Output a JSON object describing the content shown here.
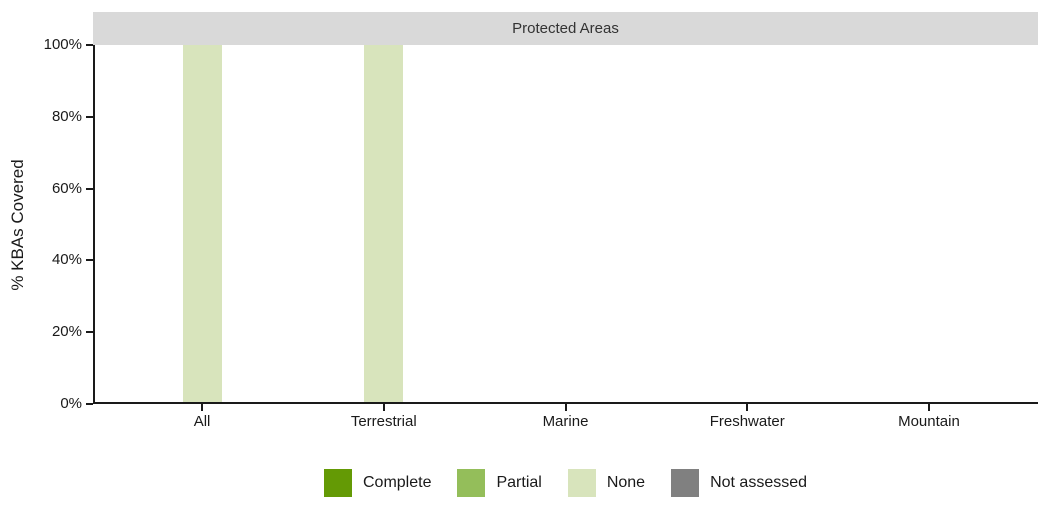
{
  "colors": {
    "strip_background": "#d9d9d9",
    "axis": "#1a1a1a",
    "text": "#333333",
    "background": "#ffffff"
  },
  "chart_data": {
    "type": "bar",
    "stacked": true,
    "facet_title": "Protected Areas",
    "ylabel": "% KBAs Covered",
    "xlabel": "",
    "categories": [
      "All",
      "Terrestrial",
      "Marine",
      "Freshwater",
      "Mountain"
    ],
    "series": [
      {
        "name": "Complete",
        "color": "#649a05",
        "values": [
          0,
          0,
          0,
          0,
          0
        ]
      },
      {
        "name": "Partial",
        "color": "#94be5a",
        "values": [
          0,
          0,
          0,
          0,
          0
        ]
      },
      {
        "name": "None",
        "color": "#d8e4bc",
        "values": [
          100,
          100,
          0,
          0,
          0
        ]
      },
      {
        "name": "Not assessed",
        "color": "#808080",
        "values": [
          0,
          0,
          0,
          0,
          0
        ]
      }
    ],
    "yticks": [
      {
        "value": 0,
        "label": "0%"
      },
      {
        "value": 20,
        "label": "20%"
      },
      {
        "value": 40,
        "label": "40%"
      },
      {
        "value": 60,
        "label": "60%"
      },
      {
        "value": 80,
        "label": "80%"
      },
      {
        "value": 100,
        "label": "100%"
      }
    ],
    "ylim": [
      0,
      100
    ],
    "grid": false,
    "legend_position": "bottom"
  }
}
